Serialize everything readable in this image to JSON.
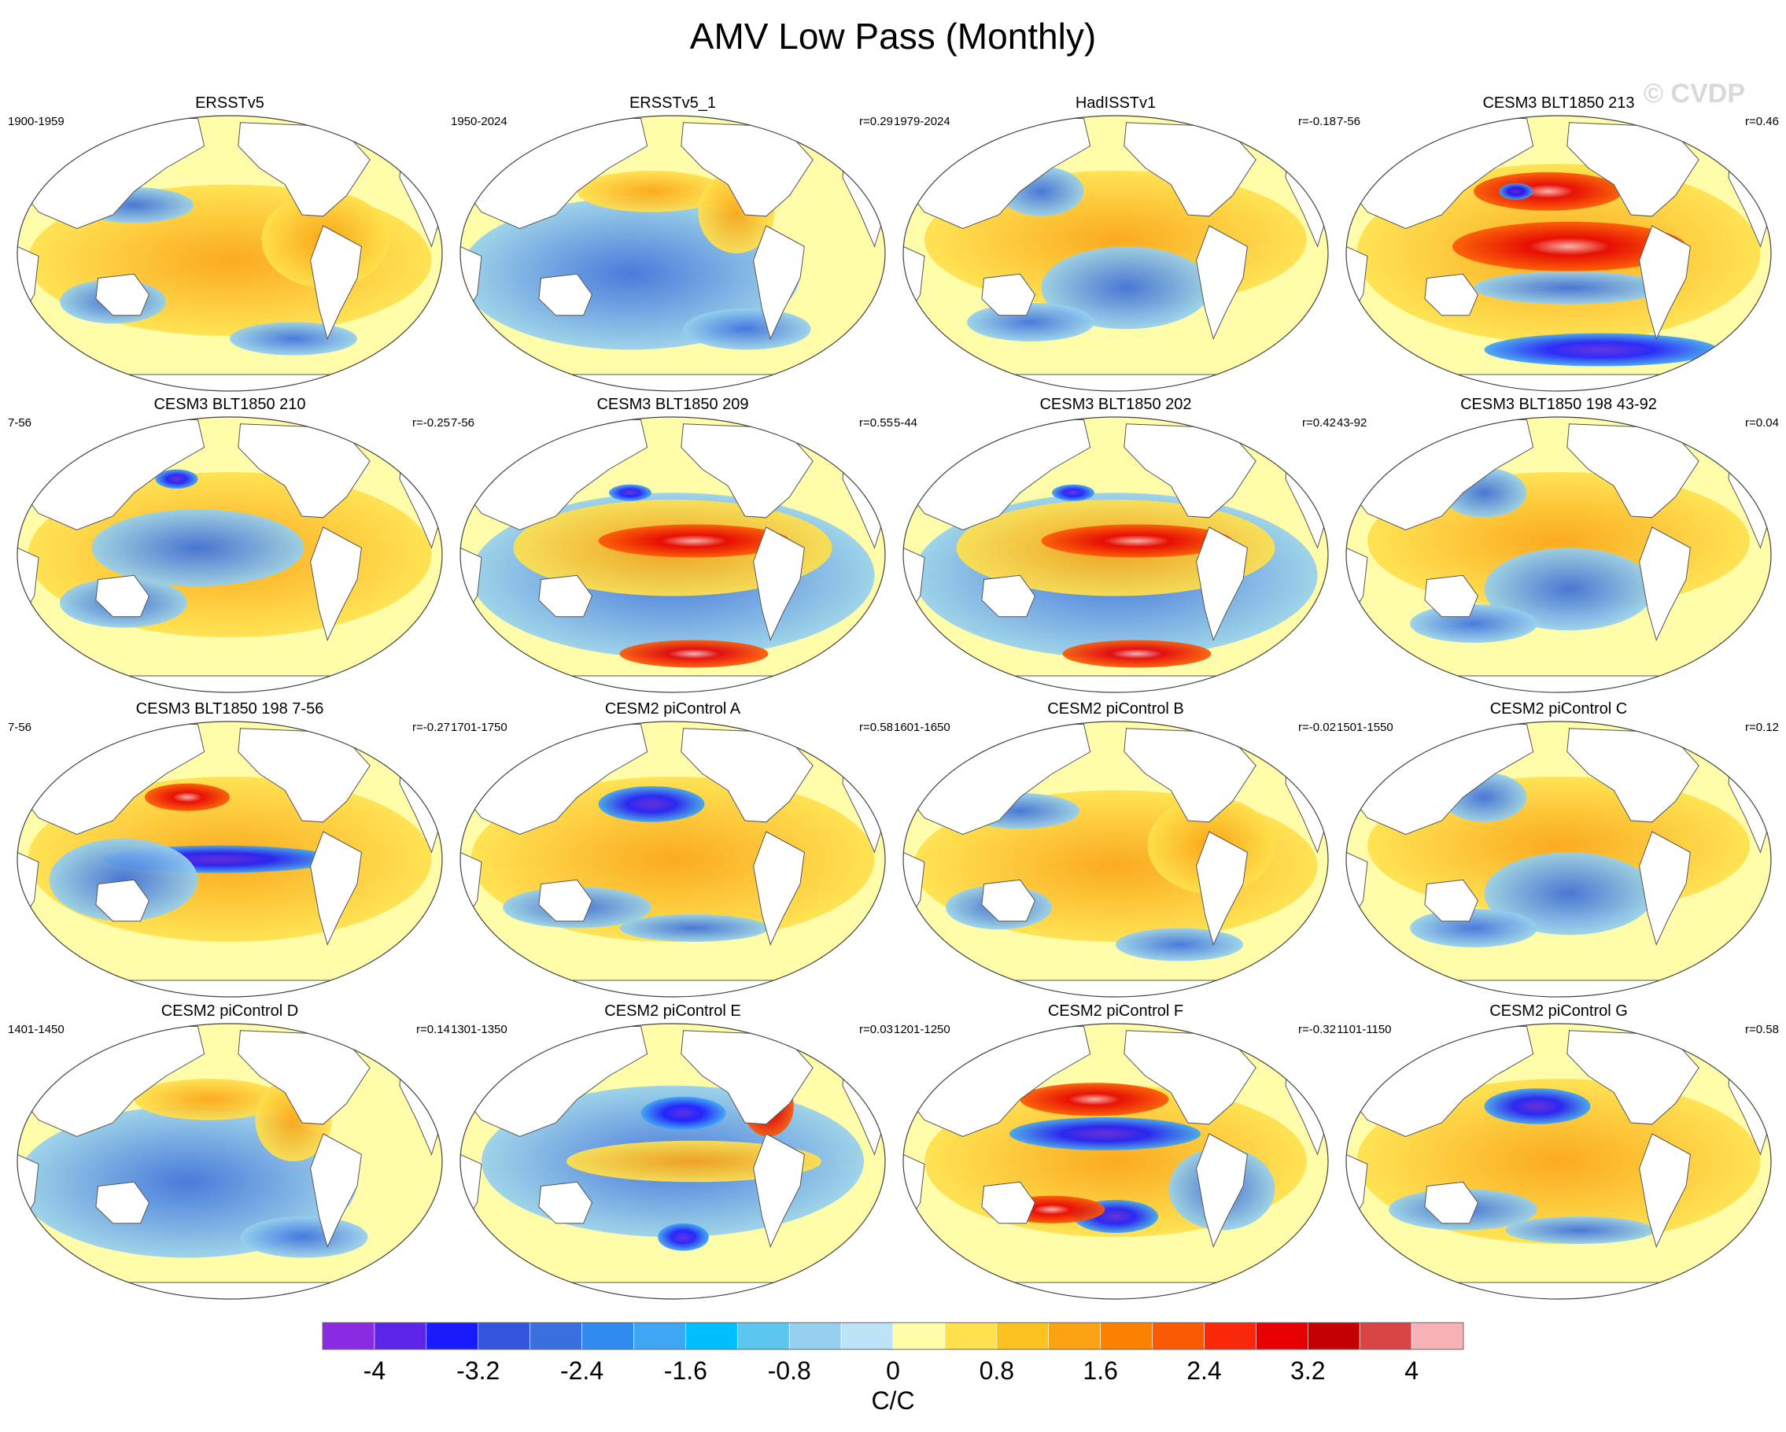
{
  "title": "AMV Low Pass (Monthly)",
  "watermark": "© CVDP",
  "panels": [
    {
      "title": "ERSSTv5",
      "period": "1900-1959",
      "corr": "",
      "pattern": "warm-broad"
    },
    {
      "title": "ERSSTv5_1",
      "period": "1950-2024",
      "corr": "r=0.29",
      "pattern": "cool-mixed"
    },
    {
      "title": "HadISSTv1",
      "period": "1979-2024",
      "corr": "r=-0.18",
      "pattern": "neutral-mixed"
    },
    {
      "title": "CESM3 BLT1850 213",
      "period": "7-56",
      "corr": "r=0.46",
      "pattern": "strong-warm-pacific"
    },
    {
      "title": "CESM3 BLT1850 210",
      "period": "7-56",
      "corr": "r=-0.25",
      "pattern": "cool-tropics"
    },
    {
      "title": "CESM3 BLT1850 209",
      "period": "7-56",
      "corr": "r=0.55",
      "pattern": "warm-tropics"
    },
    {
      "title": "CESM3 BLT1850 202",
      "period": "5-44",
      "corr": "r=0.42",
      "pattern": "warm-tropics"
    },
    {
      "title": "CESM3 BLT1850 198 43-92",
      "period": "43-92",
      "corr": "r=0.04",
      "pattern": "neutral-mixed"
    },
    {
      "title": "CESM3 BLT1850 198 7-56",
      "period": "7-56",
      "corr": "r=-0.27",
      "pattern": "cool-equator"
    },
    {
      "title": "CESM2 piControl A",
      "period": "1701-1750",
      "corr": "r=0.58",
      "pattern": "warm-pacific-cool-npac"
    },
    {
      "title": "CESM2 piControl B",
      "period": "1601-1650",
      "corr": "r=-0.02",
      "pattern": "warm-broad"
    },
    {
      "title": "CESM2 piControl C",
      "period": "1501-1550",
      "corr": "r=0.12",
      "pattern": "neutral-mixed"
    },
    {
      "title": "CESM2 piControl D",
      "period": "1401-1450",
      "corr": "r=0.14",
      "pattern": "cool-mixed"
    },
    {
      "title": "CESM2 piControl E",
      "period": "1301-1350",
      "corr": "r=0.03",
      "pattern": "cool-npac"
    },
    {
      "title": "CESM2 piControl F",
      "period": "1201-1250",
      "corr": "r=-0.32",
      "pattern": "strong-cool-npac"
    },
    {
      "title": "CESM2 piControl G",
      "period": "1101-1150",
      "corr": "r=0.58",
      "pattern": "warm-pacific-cool-npac"
    }
  ],
  "colorbar": {
    "colors": [
      "#8a2be2",
      "#5b24e6",
      "#1a1aff",
      "#3355dd",
      "#3a6fe0",
      "#2f8bf0",
      "#3ea6f5",
      "#00bfff",
      "#5cc5f0",
      "#96d0ee",
      "#bde3f6",
      "#fffcaa",
      "#ffe14d",
      "#fcc21f",
      "#fba313",
      "#fa8200",
      "#fb5a05",
      "#fa2808",
      "#e60000",
      "#c40000",
      "#d94545",
      "#f7b2b5"
    ],
    "tick_labels": [
      "-4",
      "-3.2",
      "-2.4",
      "-1.6",
      "-0.8",
      "0",
      "0.8",
      "1.6",
      "2.4",
      "3.2",
      "4"
    ],
    "units": "C/C"
  }
}
